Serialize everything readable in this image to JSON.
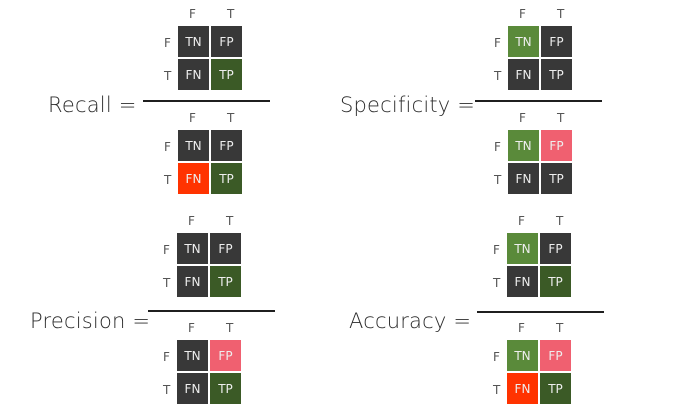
{
  "colors": {
    "dark": "#383838",
    "dark_green": "#3b5a26",
    "light_green": "#5a8a3a",
    "red": "#ff3300",
    "pink": "#f06070"
  },
  "axis": {
    "cols": [
      "F",
      "T"
    ],
    "rows": [
      "F",
      "T"
    ]
  },
  "metrics": [
    {
      "name": "Recall =",
      "numerator": [
        [
          "TN",
          "FP",
          "dark",
          "dark"
        ],
        [
          "FN",
          "TP",
          "dark",
          "dark_green"
        ]
      ],
      "denominator": [
        [
          "TN",
          "FP",
          "dark",
          "dark"
        ],
        [
          "FN",
          "TP",
          "red",
          "dark_green"
        ]
      ]
    },
    {
      "name": "Specificity =",
      "numerator": [
        [
          "TN",
          "FP",
          "light_green",
          "dark"
        ],
        [
          "FN",
          "TP",
          "dark",
          "dark"
        ]
      ],
      "denominator": [
        [
          "TN",
          "FP",
          "light_green",
          "pink"
        ],
        [
          "FN",
          "TP",
          "dark",
          "dark"
        ]
      ]
    },
    {
      "name": "Precision =",
      "numerator": [
        [
          "TN",
          "FP",
          "dark",
          "dark"
        ],
        [
          "FN",
          "TP",
          "dark",
          "dark_green"
        ]
      ],
      "denominator": [
        [
          "TN",
          "FP",
          "dark",
          "pink"
        ],
        [
          "FN",
          "TP",
          "dark",
          "dark_green"
        ]
      ]
    },
    {
      "name": "Accuracy =",
      "numerator": [
        [
          "TN",
          "FP",
          "light_green",
          "dark"
        ],
        [
          "FN",
          "TP",
          "dark",
          "dark_green"
        ]
      ],
      "denominator": [
        [
          "TN",
          "FP",
          "light_green",
          "pink"
        ],
        [
          "FN",
          "TP",
          "red",
          "dark_green"
        ]
      ]
    }
  ]
}
